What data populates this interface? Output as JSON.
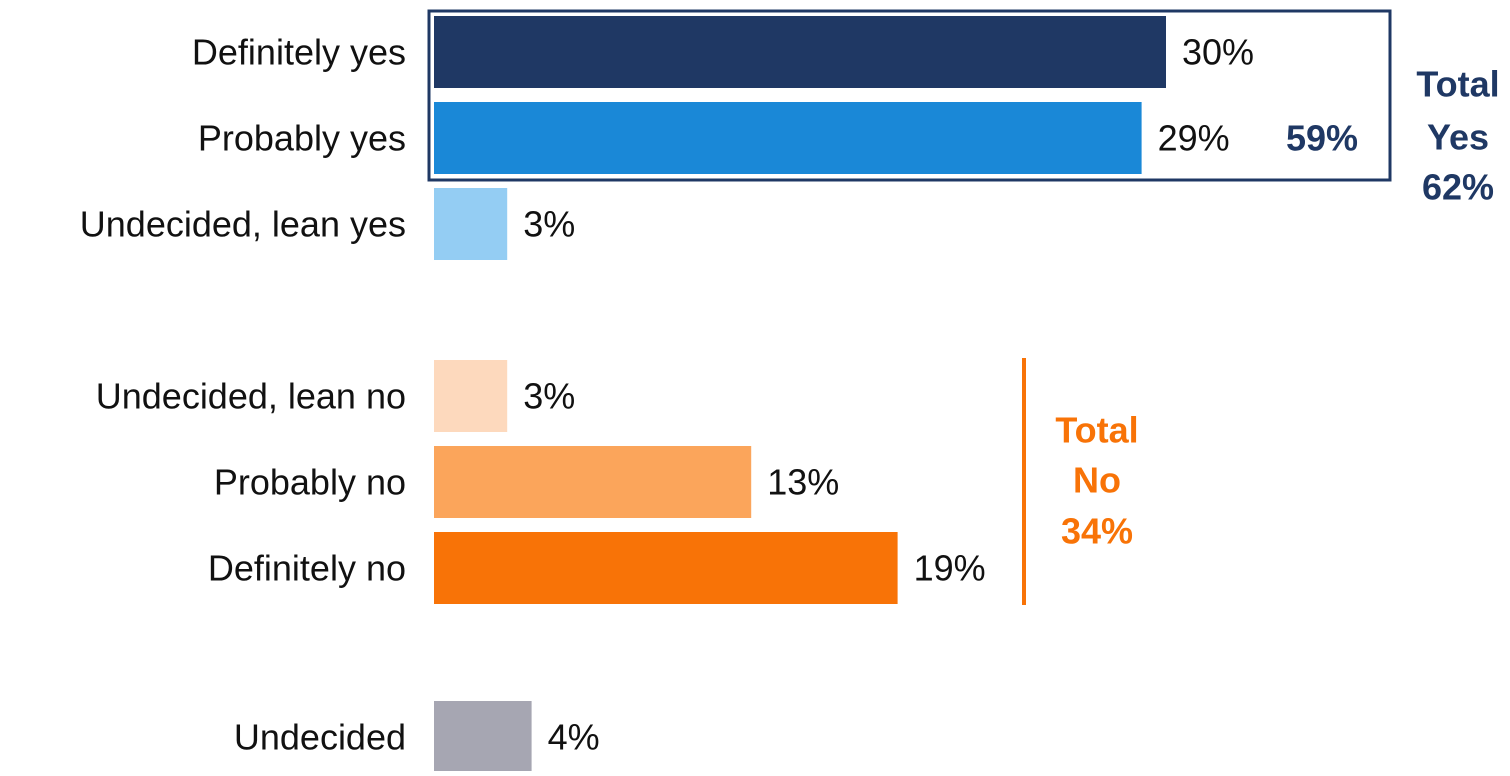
{
  "chart_data": {
    "type": "bar",
    "orientation": "horizontal",
    "categories": [
      "Definitely yes",
      "Probably yes",
      "Undecided, lean yes",
      "Undecided, lean no",
      "Probably no",
      "Definitely no",
      "Undecided"
    ],
    "values": [
      30,
      29,
      3,
      3,
      13,
      19,
      4
    ],
    "value_labels": [
      "30%",
      "29%",
      "3%",
      "3%",
      "13%",
      "19%",
      "4%"
    ],
    "colors": [
      "#1f3864",
      "#1a88d7",
      "#94cdf3",
      "#fdd9bd",
      "#fba55b",
      "#f87307",
      "#a6a6b2"
    ],
    "groups": [
      {
        "id": "yes",
        "subtotal_label": "59%",
        "subtotal_color": "#1f3864",
        "subtotal_rows": [
          0,
          1
        ],
        "total_lines": [
          "Total",
          "Yes",
          "62%"
        ],
        "total_color": "#1f3864"
      },
      {
        "id": "no",
        "total_lines": [
          "Total",
          "No",
          "34%"
        ],
        "total_color": "#f87307",
        "rows": [
          3,
          4,
          5
        ]
      }
    ],
    "xlim": [
      0,
      30
    ]
  }
}
